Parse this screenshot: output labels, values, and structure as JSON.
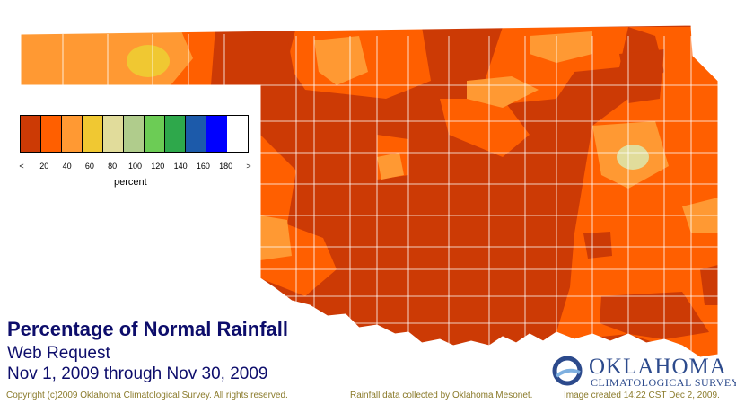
{
  "title": "Percentage of Normal Rainfall",
  "subtitle": "Web Request",
  "date_range": "Nov 1, 2009 through Nov 30, 2009",
  "legend": {
    "unit": "percent",
    "ticks": [
      "<",
      "20",
      "40",
      "60",
      "80",
      "100",
      "120",
      "140",
      "160",
      "180",
      ">"
    ],
    "colors": [
      "#cc3a05",
      "#ff5f00",
      "#ff9933",
      "#f0c832",
      "#e1dc9b",
      "#b0cc8c",
      "#6ccc55",
      "#2ea84b",
      "#1c5aaa",
      "#0000ff"
    ]
  },
  "map_colors": {
    "lt20": "#cc3a05",
    "p20_40": "#ff5f00",
    "p40_60": "#ff9933",
    "p60_80": "#f0c832",
    "p80_100": "#e1dc9b",
    "county_border": "#ffffff"
  },
  "footer": {
    "copyright": "Copyright (c)2009 Oklahoma Climatological Survey. All rights reserved.",
    "data_source": "Rainfall data collected by Oklahoma Mesonet.",
    "created": "Image created 14:22 CST Dec 2, 2009."
  },
  "logo": {
    "line1": "OKLAHOMA",
    "line2": "CLIMATOLOGICAL SURVEY"
  }
}
